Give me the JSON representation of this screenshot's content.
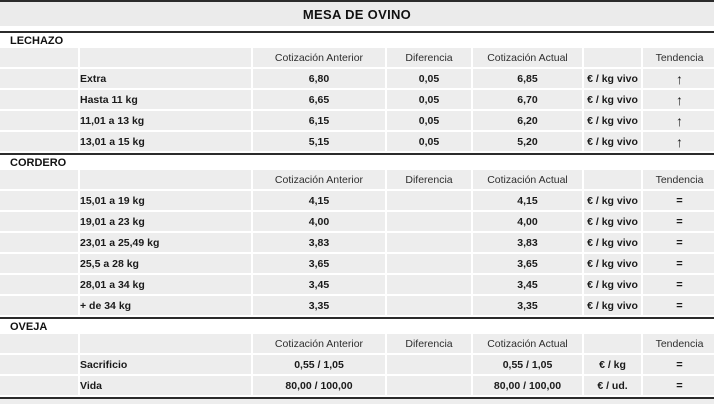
{
  "title": "MESA DE OVINO",
  "columns": {
    "anterior": "Cotización Anterior",
    "diferencia": "Diferencia",
    "actual": "Cotización Actual",
    "tendencia": "Tendencia"
  },
  "trend_glyphs": {
    "up": "↑",
    "eq": "="
  },
  "colors": {
    "trend_up_green": "#53d769",
    "trend_equal_dark": "#2e2e2e",
    "row_background": "#ededed",
    "rule_dark": "#2b2b2b",
    "title_bar_background": "#ebebeb"
  },
  "sections": [
    {
      "name": "LECHAZO",
      "rows": [
        {
          "label": "Extra",
          "anterior": "6,80",
          "diferencia": "0,05",
          "actual": "6,85",
          "unit": "€ / kg vivo",
          "trend": "up"
        },
        {
          "label": "Hasta 11 kg",
          "anterior": "6,65",
          "diferencia": "0,05",
          "actual": "6,70",
          "unit": "€ / kg vivo",
          "trend": "up"
        },
        {
          "label": "11,01 a 13 kg",
          "anterior": "6,15",
          "diferencia": "0,05",
          "actual": "6,20",
          "unit": "€ / kg vivo",
          "trend": "up"
        },
        {
          "label": "13,01 a 15 kg",
          "anterior": "5,15",
          "diferencia": "0,05",
          "actual": "5,20",
          "unit": "€ / kg vivo",
          "trend": "up"
        }
      ]
    },
    {
      "name": "CORDERO",
      "rows": [
        {
          "label": "15,01 a 19 kg",
          "anterior": "4,15",
          "diferencia": "",
          "actual": "4,15",
          "unit": "€ / kg vivo",
          "trend": "eq"
        },
        {
          "label": "19,01 a 23 kg",
          "anterior": "4,00",
          "diferencia": "",
          "actual": "4,00",
          "unit": "€ / kg vivo",
          "trend": "eq"
        },
        {
          "label": "23,01 a 25,49 kg",
          "anterior": "3,83",
          "diferencia": "",
          "actual": "3,83",
          "unit": "€ / kg vivo",
          "trend": "eq"
        },
        {
          "label": "25,5 a 28 kg",
          "anterior": "3,65",
          "diferencia": "",
          "actual": "3,65",
          "unit": "€ / kg vivo",
          "trend": "eq"
        },
        {
          "label": "28,01 a 34 kg",
          "anterior": "3,45",
          "diferencia": "",
          "actual": "3,45",
          "unit": "€ / kg vivo",
          "trend": "eq"
        },
        {
          "label": "+ de 34 kg",
          "anterior": "3,35",
          "diferencia": "",
          "actual": "3,35",
          "unit": "€ / kg vivo",
          "trend": "eq"
        }
      ]
    },
    {
      "name": "OVEJA",
      "rows": [
        {
          "label": "Sacrificio",
          "anterior": "0,55 / 1,05",
          "diferencia": "",
          "actual": "0,55 / 1,05",
          "unit": "€ / kg",
          "trend": "eq"
        },
        {
          "label": "Vida",
          "anterior": "80,00 / 100,00",
          "diferencia": "",
          "actual": "80,00 / 100,00",
          "unit": "€ / ud.",
          "trend": "eq"
        }
      ]
    }
  ]
}
